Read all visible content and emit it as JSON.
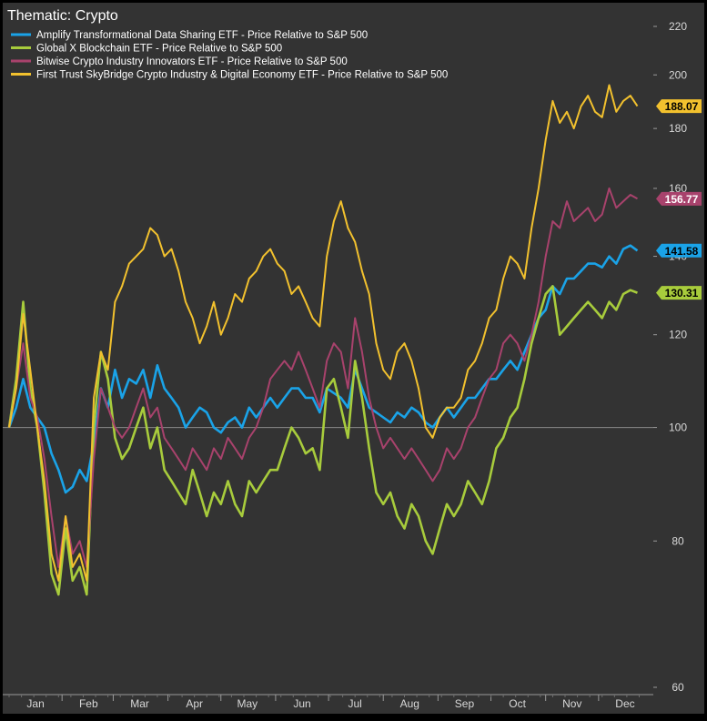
{
  "chart_data": {
    "type": "line",
    "title": "Thematic: Crypto",
    "xlabel": "",
    "ylabel": "",
    "y_scale": "log",
    "ylim": [
      60,
      220
    ],
    "y_ticks": [
      60,
      80,
      100,
      120,
      140,
      160,
      180,
      200,
      220
    ],
    "x_domain": [
      0,
      365
    ],
    "x_month_labels": [
      {
        "label": "Jan",
        "x": 15
      },
      {
        "label": "Feb",
        "x": 45
      },
      {
        "label": "Mar",
        "x": 74
      },
      {
        "label": "Apr",
        "x": 105
      },
      {
        "label": "May",
        "x": 135
      },
      {
        "label": "Jun",
        "x": 166
      },
      {
        "label": "Jul",
        "x": 196
      },
      {
        "label": "Aug",
        "x": 227
      },
      {
        "label": "Sep",
        "x": 258
      },
      {
        "label": "Oct",
        "x": 288
      },
      {
        "label": "Nov",
        "x": 319
      },
      {
        "label": "Dec",
        "x": 349
      }
    ],
    "x_month_boundaries": [
      30,
      59,
      90,
      120,
      151,
      181,
      212,
      243,
      273,
      304,
      334
    ],
    "baseline": 100,
    "legend_position": "top-left",
    "grid": false,
    "series": [
      {
        "name": "Amplify Transformational Data Sharing ETF - Price Relative to S&P 500",
        "color": "#1aa3e8",
        "last_value_label": "141.58",
        "x": [
          0,
          4,
          8,
          12,
          16,
          20,
          24,
          28,
          32,
          36,
          40,
          44,
          48,
          52,
          56,
          60,
          64,
          68,
          72,
          76,
          80,
          84,
          88,
          92,
          96,
          100,
          104,
          108,
          112,
          116,
          120,
          124,
          128,
          132,
          136,
          140,
          144,
          148,
          152,
          156,
          160,
          164,
          168,
          172,
          176,
          180,
          184,
          188,
          192,
          196,
          200,
          204,
          208,
          212,
          216,
          220,
          224,
          228,
          232,
          236,
          240,
          244,
          248,
          252,
          256,
          260,
          264,
          268,
          272,
          276,
          280,
          284,
          288,
          292,
          296,
          300,
          304,
          308,
          312,
          316,
          320,
          324,
          328,
          332,
          336,
          340,
          344,
          348,
          352,
          356
        ],
        "values": [
          100,
          104,
          110,
          104,
          102,
          100,
          95,
          92,
          88,
          89,
          92,
          90,
          97,
          108,
          104,
          112,
          106,
          110,
          109,
          112,
          106,
          113,
          108,
          106,
          104,
          100,
          102,
          104,
          103,
          100,
          99,
          101,
          102,
          100,
          104,
          102,
          104,
          106,
          104,
          106,
          108,
          108,
          106,
          106,
          103,
          108,
          107,
          106,
          104,
          112,
          108,
          104,
          103,
          102,
          101,
          103,
          102,
          104,
          103,
          101,
          100,
          102,
          104,
          102,
          104,
          106,
          106,
          108,
          110,
          110,
          112,
          114,
          112,
          116,
          120,
          124,
          126,
          132,
          130,
          134,
          134,
          136,
          138,
          138,
          137,
          140,
          138,
          142,
          143,
          141.58
        ]
      },
      {
        "name": "Global X Blockchain ETF - Price Relative to S&P 500",
        "color": "#a8cc3c",
        "last_value_label": "130.31",
        "x": [
          0,
          4,
          8,
          12,
          16,
          20,
          24,
          28,
          32,
          36,
          40,
          44,
          48,
          52,
          56,
          60,
          64,
          68,
          72,
          76,
          80,
          84,
          88,
          92,
          96,
          100,
          104,
          108,
          112,
          116,
          120,
          124,
          128,
          132,
          136,
          140,
          144,
          148,
          152,
          156,
          160,
          164,
          168,
          172,
          176,
          180,
          184,
          188,
          192,
          196,
          200,
          204,
          208,
          212,
          216,
          220,
          224,
          228,
          232,
          236,
          240,
          244,
          248,
          252,
          256,
          260,
          264,
          268,
          272,
          276,
          280,
          284,
          288,
          292,
          296,
          300,
          304,
          308,
          312,
          316,
          320,
          324,
          328,
          332,
          336,
          340,
          344,
          348,
          352,
          356
        ],
        "values": [
          100,
          110,
          128,
          108,
          100,
          88,
          75,
          72,
          82,
          74,
          76,
          72,
          100,
          116,
          110,
          98,
          94,
          96,
          100,
          104,
          96,
          100,
          92,
          90,
          88,
          86,
          92,
          88,
          84,
          88,
          86,
          90,
          86,
          84,
          90,
          88,
          90,
          92,
          92,
          96,
          100,
          98,
          95,
          96,
          92,
          108,
          110,
          104,
          98,
          114,
          106,
          96,
          88,
          86,
          88,
          84,
          82,
          86,
          84,
          80,
          78,
          82,
          86,
          84,
          86,
          90,
          88,
          86,
          90,
          96,
          98,
          102,
          104,
          110,
          118,
          124,
          130,
          132,
          120,
          122,
          124,
          126,
          128,
          126,
          124,
          128,
          126,
          130,
          131,
          130.31
        ]
      },
      {
        "name": "Bitwise Crypto Industry Innovators ETF - Price Relative to S&P 500",
        "color": "#a8426c",
        "last_value_label": "156.77",
        "x": [
          0,
          4,
          8,
          12,
          16,
          20,
          24,
          28,
          32,
          36,
          40,
          44,
          48,
          52,
          56,
          60,
          64,
          68,
          72,
          76,
          80,
          84,
          88,
          92,
          96,
          100,
          104,
          108,
          112,
          116,
          120,
          124,
          128,
          132,
          136,
          140,
          144,
          148,
          152,
          156,
          160,
          164,
          168,
          172,
          176,
          180,
          184,
          188,
          192,
          196,
          200,
          204,
          208,
          212,
          216,
          220,
          224,
          228,
          232,
          236,
          240,
          244,
          248,
          252,
          256,
          260,
          264,
          268,
          272,
          276,
          280,
          284,
          288,
          292,
          296,
          300,
          304,
          308,
          312,
          316,
          320,
          324,
          328,
          332,
          336,
          340,
          344,
          348,
          352,
          356
        ],
        "values": [
          100,
          108,
          118,
          106,
          102,
          94,
          84,
          76,
          84,
          78,
          80,
          76,
          94,
          108,
          104,
          100,
          98,
          100,
          104,
          108,
          102,
          104,
          98,
          96,
          94,
          92,
          96,
          94,
          92,
          96,
          94,
          98,
          96,
          94,
          98,
          100,
          104,
          110,
          112,
          114,
          112,
          116,
          112,
          108,
          104,
          114,
          118,
          116,
          108,
          124,
          116,
          106,
          100,
          96,
          98,
          96,
          94,
          96,
          94,
          92,
          90,
          92,
          96,
          94,
          96,
          100,
          102,
          106,
          110,
          112,
          118,
          120,
          118,
          114,
          120,
          128,
          140,
          150,
          148,
          156,
          150,
          152,
          154,
          150,
          152,
          160,
          154,
          156,
          158,
          156.77
        ]
      },
      {
        "name": "First Trust SkyBridge Crypto Industry & Digital Economy ETF - Price Relative to S&P 500",
        "color": "#f2c12e",
        "last_value_label": "188.07",
        "x": [
          0,
          4,
          8,
          12,
          16,
          20,
          24,
          28,
          32,
          36,
          40,
          44,
          48,
          52,
          56,
          60,
          64,
          68,
          72,
          76,
          80,
          84,
          88,
          92,
          96,
          100,
          104,
          108,
          112,
          116,
          120,
          124,
          128,
          132,
          136,
          140,
          144,
          148,
          152,
          156,
          160,
          164,
          168,
          172,
          176,
          180,
          184,
          188,
          192,
          196,
          200,
          204,
          208,
          212,
          216,
          220,
          224,
          228,
          232,
          236,
          240,
          244,
          248,
          252,
          256,
          260,
          264,
          268,
          272,
          276,
          280,
          284,
          288,
          292,
          296,
          300,
          304,
          308,
          312,
          316,
          320,
          324,
          328,
          332,
          336,
          340,
          344,
          348,
          352,
          356
        ],
        "values": [
          100,
          108,
          125,
          112,
          100,
          90,
          78,
          74,
          84,
          76,
          78,
          74,
          106,
          116,
          112,
          128,
          132,
          138,
          140,
          142,
          148,
          146,
          140,
          142,
          136,
          128,
          124,
          118,
          122,
          128,
          120,
          124,
          130,
          128,
          134,
          136,
          140,
          142,
          138,
          136,
          130,
          132,
          128,
          124,
          122,
          140,
          150,
          156,
          148,
          144,
          136,
          130,
          118,
          112,
          110,
          116,
          118,
          114,
          108,
          100,
          98,
          102,
          104,
          104,
          106,
          112,
          114,
          118,
          124,
          126,
          134,
          140,
          138,
          134,
          148,
          160,
          176,
          190,
          182,
          186,
          180,
          188,
          192,
          186,
          184,
          196,
          186,
          190,
          192,
          188.07
        ]
      }
    ]
  }
}
